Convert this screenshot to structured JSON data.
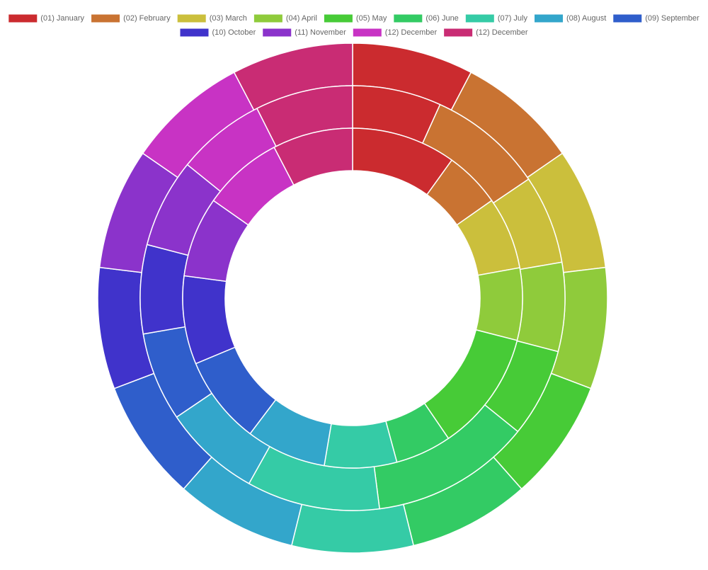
{
  "chart_data": {
    "type": "doughnut",
    "categories": [
      "(01) January",
      "(02) February",
      "(03) March",
      "(04) April",
      "(05) May",
      "(06) June",
      "(07) July",
      "(08) August",
      "(09) September",
      "(10) October",
      "(11) November",
      "(12) December",
      "(12) December"
    ],
    "colors": [
      "#cb2b2f",
      "#c97332",
      "#cbbf3c",
      "#8fcb3b",
      "#47cb37",
      "#33cb64",
      "#35cba6",
      "#33a6cb",
      "#2f5ecb",
      "#4033cb",
      "#8b33cb",
      "#c833c4",
      "#c92c74"
    ],
    "series": [
      {
        "values": [
          10,
          10,
          10,
          10,
          10,
          10,
          10,
          10,
          10,
          10,
          10,
          10,
          10
        ]
      },
      {
        "values": [
          10,
          13,
          10,
          10,
          10,
          18,
          15,
          11,
          10,
          10,
          10,
          10,
          11
        ]
      },
      {
        "values": [
          13,
          7,
          9,
          9,
          15,
          7,
          9,
          10,
          11,
          11,
          10,
          10,
          10
        ]
      }
    ],
    "legend": "top"
  }
}
